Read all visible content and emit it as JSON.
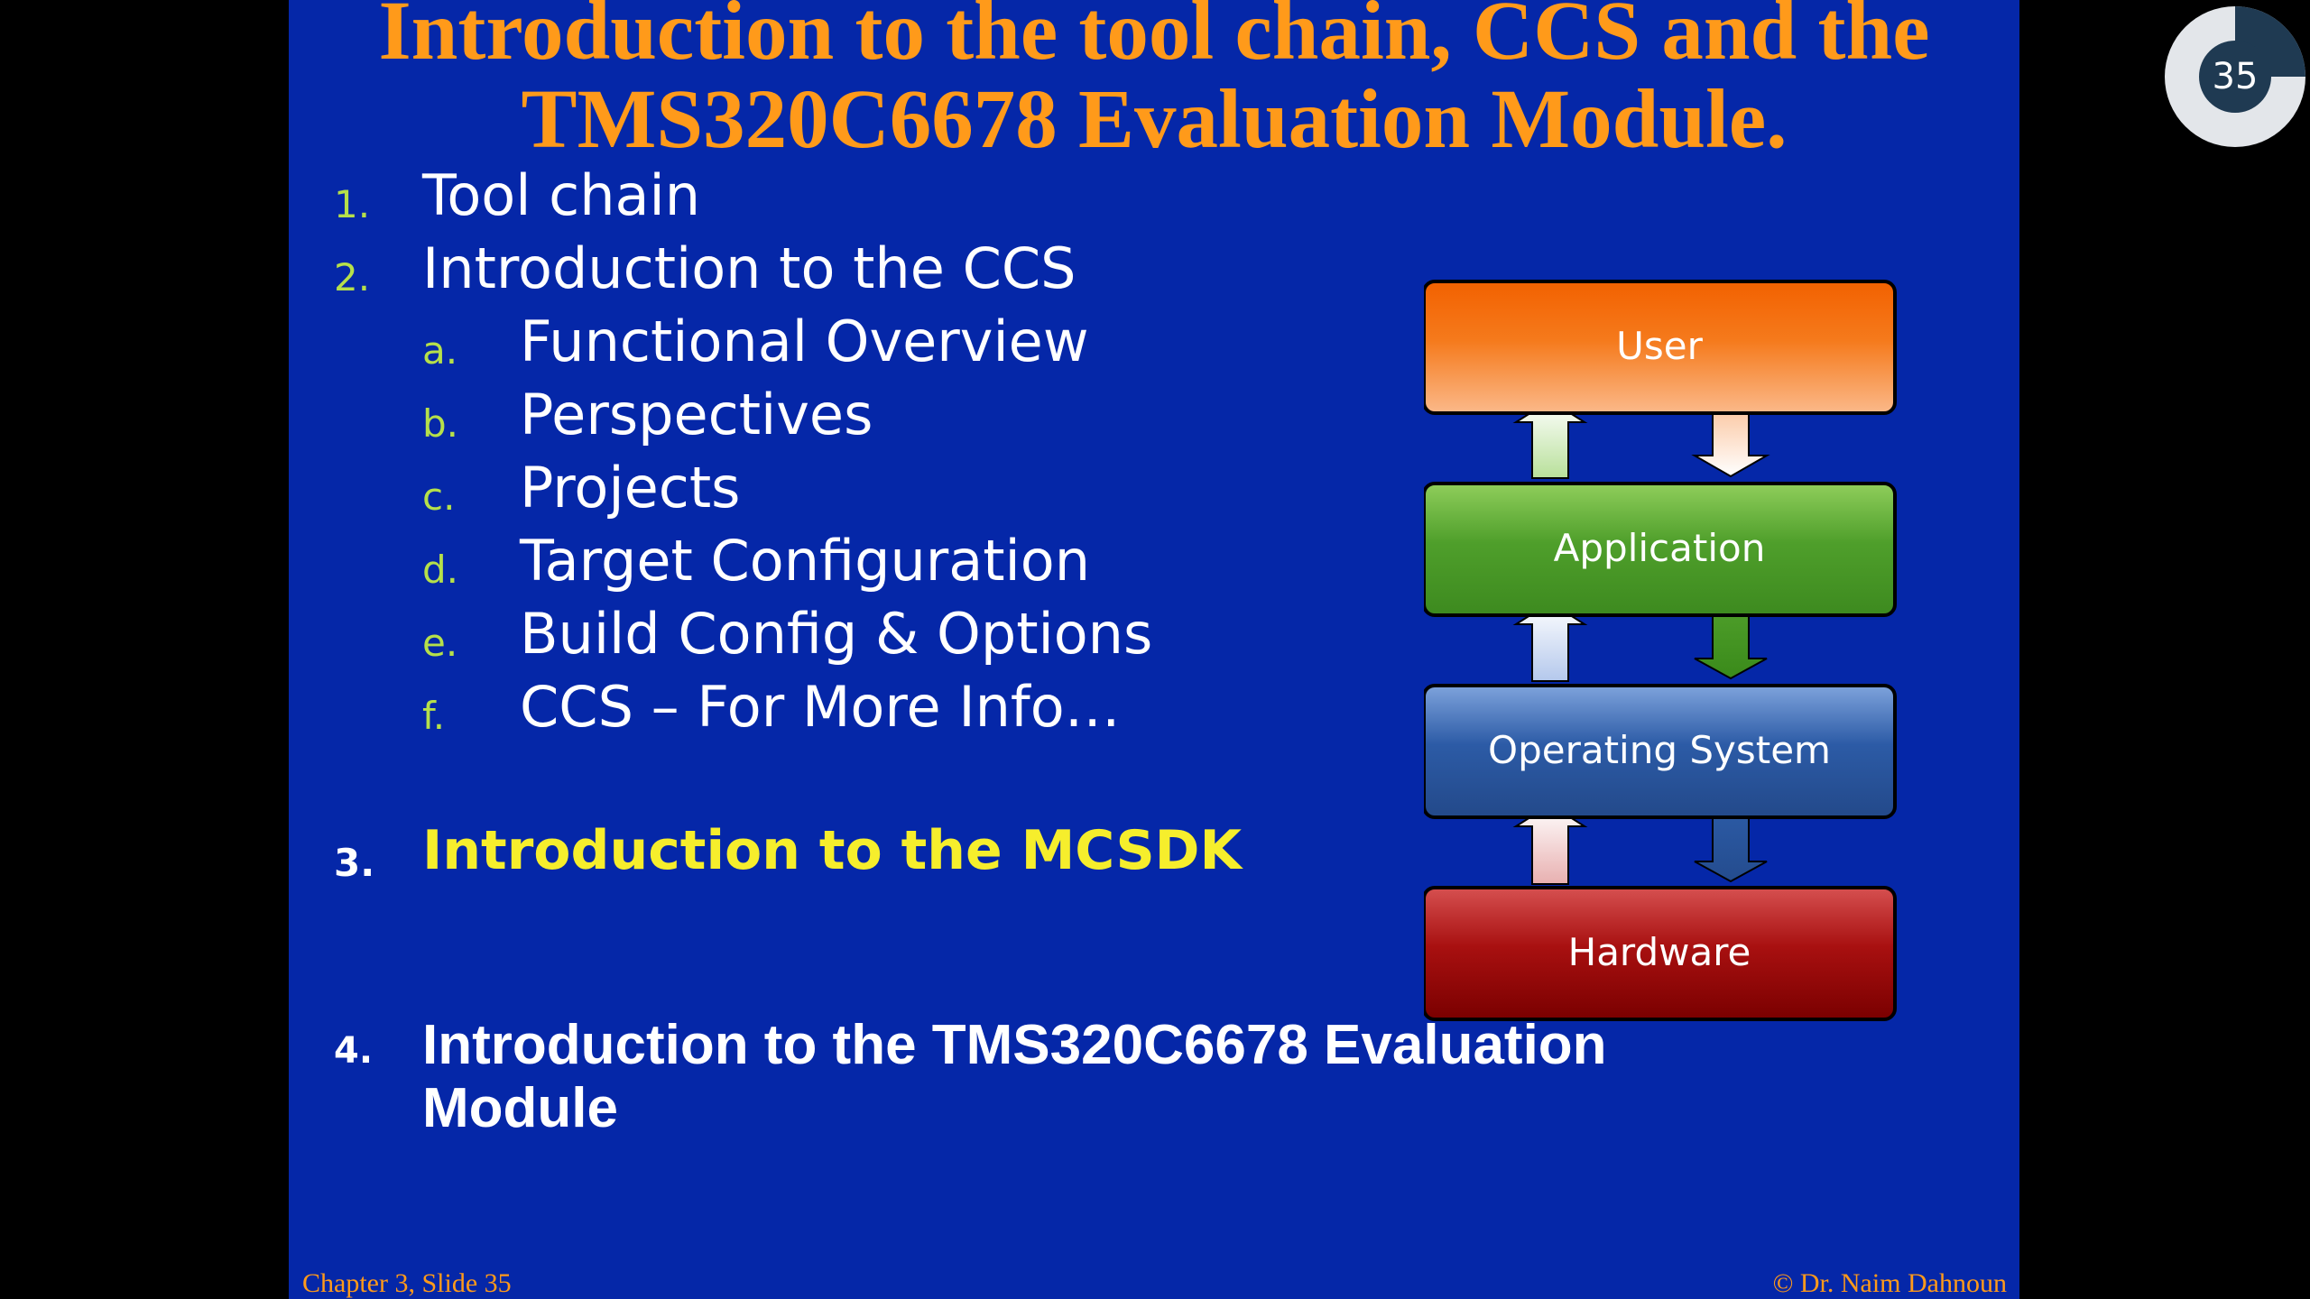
{
  "slide": {
    "title_line1": "Introduction to the tool chain, CCS and the",
    "title_line2": "TMS320C6678 Evaluation Module.",
    "items": [
      {
        "marker": "1.",
        "text": "Tool chain"
      },
      {
        "marker": "2.",
        "text": "Introduction to the CCS"
      },
      {
        "marker": "a.",
        "text": "Functional Overview"
      },
      {
        "marker": "b.",
        "text": "Perspectives"
      },
      {
        "marker": "c.",
        "text": "Projects"
      },
      {
        "marker": "d.",
        "text": "Target Configuration"
      },
      {
        "marker": "e.",
        "text": "Build Config & Options"
      },
      {
        "marker": "f.",
        "text": "CCS – For More Info…"
      },
      {
        "marker": "3.",
        "text": "Introduction to the MCSDK"
      },
      {
        "marker": "4.",
        "text": "Introduction to the TMS320C6678 Evaluation Module"
      }
    ],
    "diagram": {
      "layers": [
        "User",
        "Application",
        "Operating System",
        "Hardware"
      ],
      "colors": {
        "user": "#f26a10",
        "application": "#4f9f2b",
        "os": "#2c5ba6",
        "hardware": "#8e0505"
      }
    },
    "footer_left": "Chapter 3, Slide 35",
    "footer_right": "© Dr. Naim Dahnoun"
  },
  "slide_counter": {
    "number": "35",
    "progress_fraction": 0.25
  },
  "colors": {
    "slide_background": "#0527a8",
    "title": "#ff9a1a",
    "marker": "#b6e04a",
    "highlight": "#f6ee2c"
  }
}
